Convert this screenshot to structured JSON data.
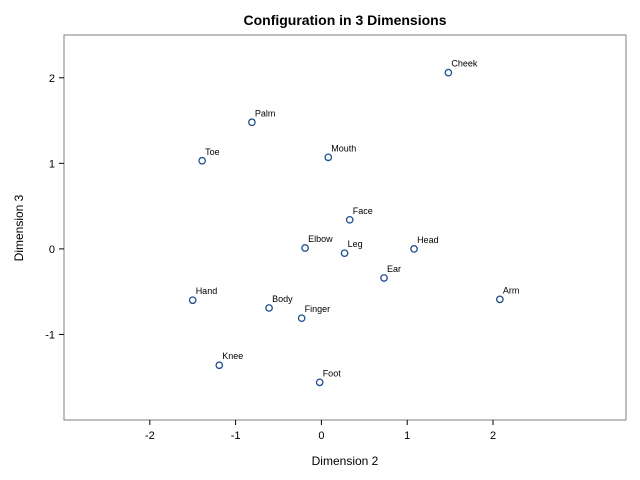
{
  "chart_data": {
    "type": "scatter",
    "title": "Configuration in 3 Dimensions",
    "xlabel": "Dimension 2",
    "ylabel": "Dimension 3",
    "xlim": [
      -3.0,
      3.55
    ],
    "ylim": [
      -2.0,
      2.5
    ],
    "xticks": [
      -2,
      -1,
      0,
      1,
      2
    ],
    "yticks": [
      -1,
      0,
      1,
      2
    ],
    "grid": false,
    "marker_color": "#1f4e8c",
    "points": [
      {
        "label": "Cheek",
        "x": 1.48,
        "y": 2.06
      },
      {
        "label": "Palm",
        "x": -0.81,
        "y": 1.48
      },
      {
        "label": "Toe",
        "x": -1.39,
        "y": 1.03
      },
      {
        "label": "Mouth",
        "x": 0.08,
        "y": 1.07
      },
      {
        "label": "Face",
        "x": 0.33,
        "y": 0.34
      },
      {
        "label": "Elbow",
        "x": -0.19,
        "y": 0.01
      },
      {
        "label": "Leg",
        "x": 0.27,
        "y": -0.05
      },
      {
        "label": "Head",
        "x": 1.08,
        "y": 0.0
      },
      {
        "label": "Ear",
        "x": 0.73,
        "y": -0.34
      },
      {
        "label": "Arm",
        "x": 2.08,
        "y": -0.59
      },
      {
        "label": "Hand",
        "x": -1.5,
        "y": -0.6
      },
      {
        "label": "Body",
        "x": -0.61,
        "y": -0.69
      },
      {
        "label": "Finger",
        "x": -0.23,
        "y": -0.81
      },
      {
        "label": "Knee",
        "x": -1.19,
        "y": -1.36
      },
      {
        "label": "Foot",
        "x": -0.02,
        "y": -1.56
      }
    ]
  }
}
